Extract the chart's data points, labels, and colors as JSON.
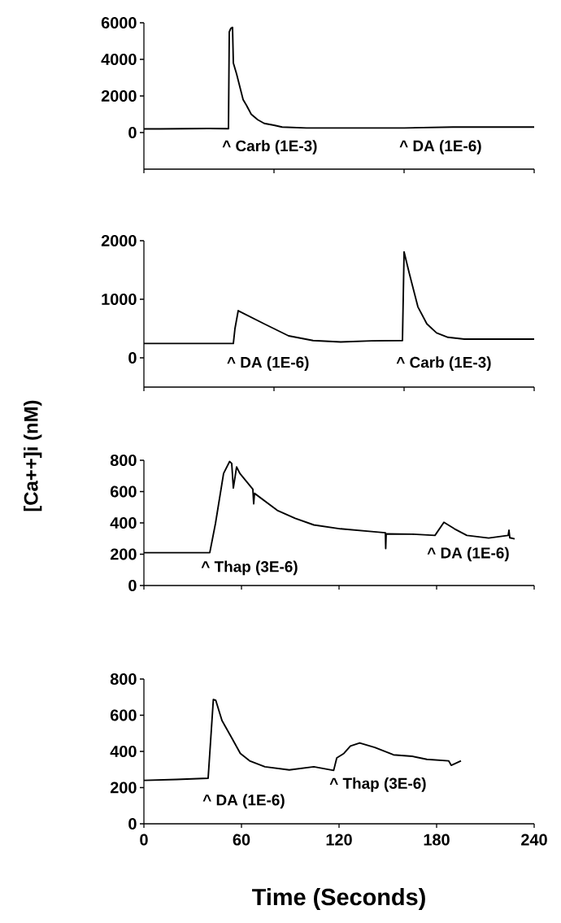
{
  "chart_data": [
    {
      "type": "line",
      "xlim": [
        0,
        240
      ],
      "ylim": [
        -2000,
        6000
      ],
      "yticks": [
        0,
        2000,
        4000,
        6000
      ],
      "xticks": [
        {
          "value": 0,
          "label": null
        },
        {
          "value": 80,
          "label": null
        },
        {
          "value": 160,
          "label": null
        },
        {
          "value": 240,
          "label": null
        }
      ],
      "tick_labels": "y",
      "series": [
        {
          "color": "#000000",
          "x": [
            0,
            10,
            40,
            52,
            52.5,
            53.5,
            54.5,
            55,
            57,
            59,
            61,
            63,
            66,
            70,
            74,
            80,
            85,
            100,
            120,
            140,
            160,
            190,
            240
          ],
          "values": [
            200,
            200,
            220,
            210,
            5500,
            5700,
            5750,
            3800,
            3200,
            2500,
            1800,
            1500,
            1000,
            700,
            500,
            400,
            300,
            250,
            250,
            250,
            250,
            300,
            300
          ]
        }
      ],
      "annotations": [
        "^ Carb (1E-3)",
        "^ DA (1E-6)"
      ]
    },
    {
      "type": "line",
      "xlim": [
        0,
        240
      ],
      "ylim": [
        -500,
        2000
      ],
      "yticks": [
        0,
        1000,
        2000
      ],
      "xticks": [
        {
          "value": 0,
          "label": null
        },
        {
          "value": 80,
          "label": null
        },
        {
          "value": 160,
          "label": null
        },
        {
          "value": 240,
          "label": null
        }
      ],
      "tick_labels": "y",
      "ylabel": "[Ca++]i (nM)",
      "series": [
        {
          "color": "#000000",
          "x": [
            0,
            20,
            40,
            55,
            56,
            58,
            74,
            89,
            104,
            121,
            140,
            159,
            160,
            163,
            168.5,
            174,
            180,
            187,
            197,
            220,
            240
          ],
          "values": [
            245,
            245,
            245,
            245,
            500,
            805,
            580,
            375,
            295,
            270,
            290,
            295,
            1810,
            1465,
            870,
            580,
            425,
            350,
            320,
            320,
            320
          ]
        }
      ],
      "annotations": [
        "^ DA (1E-6)",
        "^ Carb (1E-3)"
      ]
    },
    {
      "type": "line",
      "xlim": [
        0,
        240
      ],
      "ylim": [
        0,
        800
      ],
      "yticks": [
        0,
        200,
        400,
        600,
        800
      ],
      "xticks": [
        {
          "value": 0,
          "label": null
        },
        {
          "value": 60,
          "label": null
        },
        {
          "value": 120,
          "label": null
        },
        {
          "value": 180,
          "label": null
        },
        {
          "value": 240,
          "label": null
        }
      ],
      "tick_labels": "y",
      "series": [
        {
          "color": "#000000",
          "x": [
            0,
            20,
            40.5,
            44,
            49,
            52.7,
            54,
            55,
            57,
            59,
            67,
            67.5,
            68,
            82,
            93,
            104.5,
            121,
            140,
            148.5,
            148.7,
            149,
            165,
            179,
            184.5,
            191,
            198.6,
            212,
            224,
            224.5,
            225,
            228
          ],
          "values": [
            210,
            210,
            210,
            396,
            716,
            792,
            780,
            623,
            758,
            716,
            615,
            522,
            589,
            480,
            429,
            387,
            362,
            345,
            337,
            236,
            330,
            328,
            320,
            404,
            362,
            320,
            303,
            320,
            353,
            305,
            298
          ]
        }
      ],
      "annotations": [
        "^ Thap (3E-6)",
        "^ DA (1E-6)"
      ]
    },
    {
      "type": "line",
      "xlim": [
        0,
        240
      ],
      "ylim": [
        0,
        800
      ],
      "yticks": [
        0,
        200,
        400,
        600,
        800
      ],
      "xticks": [
        0,
        60,
        120,
        180,
        240
      ],
      "xlabel": "Time (Seconds)",
      "series": [
        {
          "color": "#000000",
          "x": [
            0,
            20,
            39.5,
            42.7,
            44.2,
            48,
            53.7,
            59.3,
            65,
            74.4,
            89.4,
            104.5,
            116.7,
            118.6,
            123,
            127,
            132.7,
            142,
            153.5,
            165,
            174,
            187.4,
            189,
            195
          ],
          "values": [
            240,
            245,
            252,
            687,
            682,
            571,
            480,
            389,
            348,
            315,
            298,
            315,
            295,
            364,
            389,
            430,
            447,
            422,
            381,
            373,
            356,
            348,
            323,
            348
          ]
        }
      ],
      "annotations": [
        "^ DA (1E-6)",
        "^ Thap (3E-6)"
      ]
    }
  ]
}
